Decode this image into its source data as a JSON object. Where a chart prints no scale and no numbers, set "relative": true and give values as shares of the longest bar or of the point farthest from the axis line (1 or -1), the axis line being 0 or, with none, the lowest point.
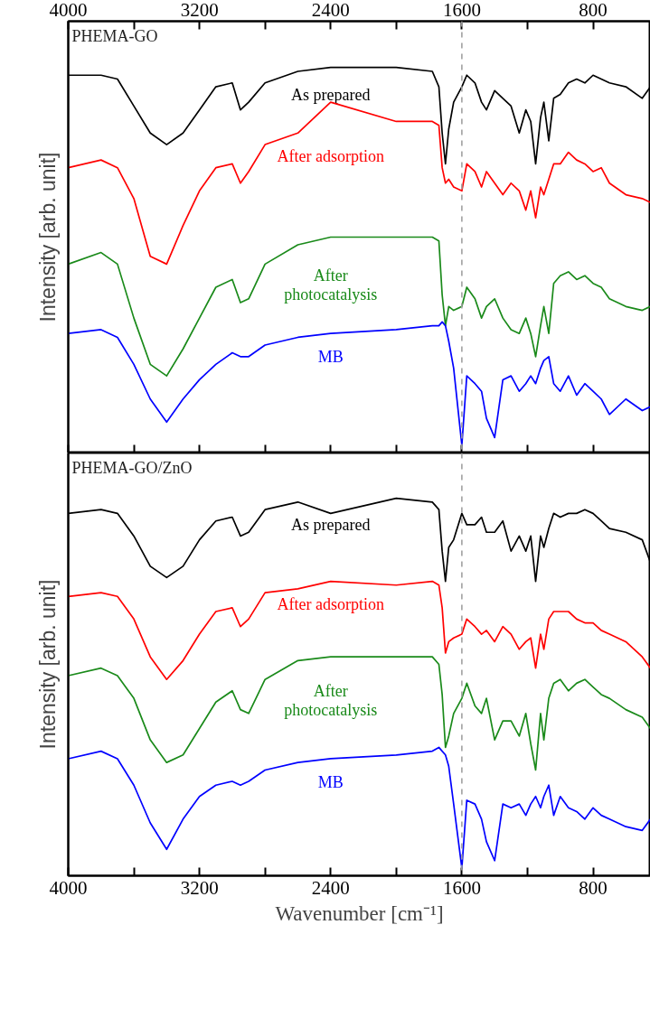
{
  "chart_data": [
    {
      "type": "line",
      "title": "PHEMA-GO",
      "ylabel": "Intensity [arb. unit]",
      "relative": true,
      "line_style": "solid",
      "tick_labels": false,
      "xlim": [
        4000,
        450
      ],
      "xticks": [
        4000,
        {
          "value": 3600,
          "label": null
        },
        3200,
        {
          "value": 2800,
          "label": null
        },
        2400,
        {
          "value": 2000,
          "label": null
        },
        1600,
        {
          "value": 1200,
          "label": null
        },
        800
      ],
      "x2lim": [
        4000,
        450
      ],
      "x2ticks": [
        4000,
        {
          "value": 3600,
          "label": null
        },
        3200,
        {
          "value": 2800,
          "label": null
        },
        2400,
        {
          "value": 2000,
          "label": null
        },
        1600,
        {
          "value": 1200,
          "label": null
        },
        800
      ],
      "x": [
        4000,
        3800,
        3700,
        3600,
        3500,
        3400,
        3300,
        3200,
        3100,
        3000,
        2950,
        2900,
        2800,
        2600,
        2400,
        2000,
        1780,
        1740,
        1720,
        1700,
        1680,
        1650,
        1600,
        1570,
        1520,
        1480,
        1450,
        1400,
        1350,
        1300,
        1250,
        1210,
        1180,
        1150,
        1120,
        1100,
        1070,
        1040,
        1000,
        950,
        900,
        850,
        800,
        750,
        700,
        600,
        500,
        450
      ],
      "ref_lines": [
        {
          "axis": "x",
          "value": 1600,
          "color": "#a0a0a0",
          "line_style": "dashed"
        }
      ],
      "series": [
        {
          "name": "As prepared",
          "color": "#000000",
          "values": [
            0.98,
            0.98,
            0.97,
            0.9,
            0.83,
            0.8,
            0.83,
            0.89,
            0.95,
            0.96,
            0.89,
            0.91,
            0.96,
            0.99,
            1.0,
            1.0,
            0.99,
            0.95,
            0.83,
            0.75,
            0.84,
            0.91,
            0.95,
            0.98,
            0.96,
            0.91,
            0.89,
            0.94,
            0.92,
            0.9,
            0.83,
            0.89,
            0.86,
            0.75,
            0.87,
            0.91,
            0.81,
            0.92,
            0.93,
            0.96,
            0.97,
            0.96,
            0.98,
            0.97,
            0.96,
            0.95,
            0.92,
            0.95
          ]
        },
        {
          "name": "After adsorption",
          "color": "#ff0000",
          "values": [
            0.74,
            0.76,
            0.74,
            0.66,
            0.51,
            0.49,
            0.59,
            0.68,
            0.74,
            0.75,
            0.7,
            0.73,
            0.8,
            0.83,
            0.91,
            0.86,
            0.86,
            0.85,
            0.74,
            0.7,
            0.71,
            0.69,
            0.68,
            0.75,
            0.73,
            0.69,
            0.73,
            0.7,
            0.67,
            0.7,
            0.68,
            0.63,
            0.68,
            0.61,
            0.69,
            0.67,
            0.71,
            0.75,
            0.75,
            0.78,
            0.76,
            0.75,
            0.73,
            0.74,
            0.7,
            0.67,
            0.66,
            0.65
          ]
        },
        {
          "name": "After photocatalysis",
          "color": "#1a8a1a",
          "values": [
            0.49,
            0.52,
            0.49,
            0.35,
            0.23,
            0.2,
            0.27,
            0.35,
            0.43,
            0.45,
            0.39,
            0.4,
            0.49,
            0.54,
            0.56,
            0.56,
            0.56,
            0.55,
            0.41,
            0.33,
            0.38,
            0.37,
            0.38,
            0.43,
            0.4,
            0.35,
            0.38,
            0.4,
            0.35,
            0.32,
            0.31,
            0.35,
            0.31,
            0.25,
            0.33,
            0.38,
            0.31,
            0.44,
            0.46,
            0.47,
            0.45,
            0.46,
            0.44,
            0.43,
            0.4,
            0.38,
            0.37,
            0.38
          ]
        },
        {
          "name": "MB",
          "color": "#0000ff",
          "values": [
            0.31,
            0.32,
            0.3,
            0.23,
            0.14,
            0.08,
            0.14,
            0.19,
            0.23,
            0.26,
            0.25,
            0.25,
            0.28,
            0.3,
            0.31,
            0.32,
            0.33,
            0.33,
            0.34,
            0.33,
            0.29,
            0.22,
            0.02,
            0.2,
            0.18,
            0.16,
            0.09,
            0.04,
            0.19,
            0.2,
            0.16,
            0.18,
            0.2,
            0.18,
            0.22,
            0.24,
            0.25,
            0.18,
            0.16,
            0.2,
            0.15,
            0.18,
            0.16,
            0.14,
            0.1,
            0.14,
            0.11,
            0.12
          ]
        }
      ]
    },
    {
      "type": "line",
      "title": "PHEMA-GO/ZnO",
      "ylabel": "Intensity [arb. unit]",
      "xlabel": "Wavenumber [cm⁻¹]",
      "relative": true,
      "line_style": "solid",
      "tick_labels": "x",
      "xlim": [
        4000,
        450
      ],
      "xticks": [
        4000,
        {
          "value": 3600,
          "label": null
        },
        3200,
        {
          "value": 2800,
          "label": null
        },
        2400,
        {
          "value": 2000,
          "label": null
        },
        1600,
        {
          "value": 1200,
          "label": null
        },
        800
      ],
      "x": [
        4000,
        3800,
        3700,
        3600,
        3500,
        3400,
        3300,
        3200,
        3100,
        3000,
        2950,
        2900,
        2800,
        2600,
        2400,
        2000,
        1780,
        1740,
        1720,
        1700,
        1680,
        1650,
        1600,
        1570,
        1520,
        1480,
        1450,
        1400,
        1350,
        1300,
        1250,
        1210,
        1180,
        1150,
        1120,
        1100,
        1070,
        1040,
        1000,
        950,
        900,
        850,
        800,
        750,
        700,
        600,
        500,
        450
      ],
      "ref_lines": [
        {
          "axis": "x",
          "value": 1600,
          "color": "#a0a0a0",
          "line_style": "dashed"
        }
      ],
      "series": [
        {
          "name": "As prepared",
          "color": "#000000",
          "values": [
            0.96,
            0.97,
            0.96,
            0.9,
            0.82,
            0.79,
            0.82,
            0.89,
            0.94,
            0.95,
            0.9,
            0.91,
            0.97,
            0.99,
            0.96,
            1.0,
            0.99,
            0.97,
            0.86,
            0.78,
            0.87,
            0.89,
            0.96,
            0.93,
            0.93,
            0.95,
            0.91,
            0.91,
            0.94,
            0.86,
            0.9,
            0.86,
            0.9,
            0.78,
            0.9,
            0.87,
            0.92,
            0.96,
            0.95,
            0.96,
            0.96,
            0.97,
            0.96,
            0.94,
            0.92,
            0.91,
            0.89,
            0.83
          ]
        },
        {
          "name": "After adsorption",
          "color": "#ff0000",
          "values": [
            0.74,
            0.75,
            0.74,
            0.68,
            0.58,
            0.52,
            0.57,
            0.64,
            0.7,
            0.71,
            0.66,
            0.68,
            0.75,
            0.76,
            0.78,
            0.77,
            0.78,
            0.77,
            0.71,
            0.59,
            0.62,
            0.63,
            0.64,
            0.68,
            0.66,
            0.64,
            0.65,
            0.62,
            0.66,
            0.64,
            0.6,
            0.62,
            0.63,
            0.55,
            0.64,
            0.6,
            0.68,
            0.7,
            0.7,
            0.7,
            0.68,
            0.67,
            0.67,
            0.65,
            0.64,
            0.62,
            0.58,
            0.55
          ]
        },
        {
          "name": "After photocatalysis",
          "color": "#1a8a1a",
          "values": [
            0.53,
            0.55,
            0.53,
            0.47,
            0.36,
            0.3,
            0.32,
            0.39,
            0.46,
            0.49,
            0.44,
            0.43,
            0.52,
            0.57,
            0.58,
            0.58,
            0.58,
            0.56,
            0.48,
            0.34,
            0.37,
            0.43,
            0.47,
            0.51,
            0.45,
            0.43,
            0.47,
            0.36,
            0.41,
            0.41,
            0.37,
            0.43,
            0.35,
            0.28,
            0.43,
            0.36,
            0.47,
            0.51,
            0.52,
            0.49,
            0.51,
            0.52,
            0.5,
            0.48,
            0.47,
            0.44,
            0.42,
            0.39
          ]
        },
        {
          "name": "MB",
          "color": "#0000ff",
          "values": [
            0.31,
            0.33,
            0.31,
            0.24,
            0.14,
            0.07,
            0.15,
            0.21,
            0.24,
            0.25,
            0.24,
            0.25,
            0.28,
            0.3,
            0.31,
            0.32,
            0.33,
            0.34,
            0.33,
            0.32,
            0.29,
            0.19,
            0.02,
            0.2,
            0.19,
            0.15,
            0.09,
            0.04,
            0.19,
            0.18,
            0.19,
            0.16,
            0.19,
            0.21,
            0.18,
            0.21,
            0.24,
            0.16,
            0.21,
            0.18,
            0.17,
            0.15,
            0.18,
            0.16,
            0.15,
            0.13,
            0.12,
            0.15
          ]
        }
      ]
    }
  ]
}
